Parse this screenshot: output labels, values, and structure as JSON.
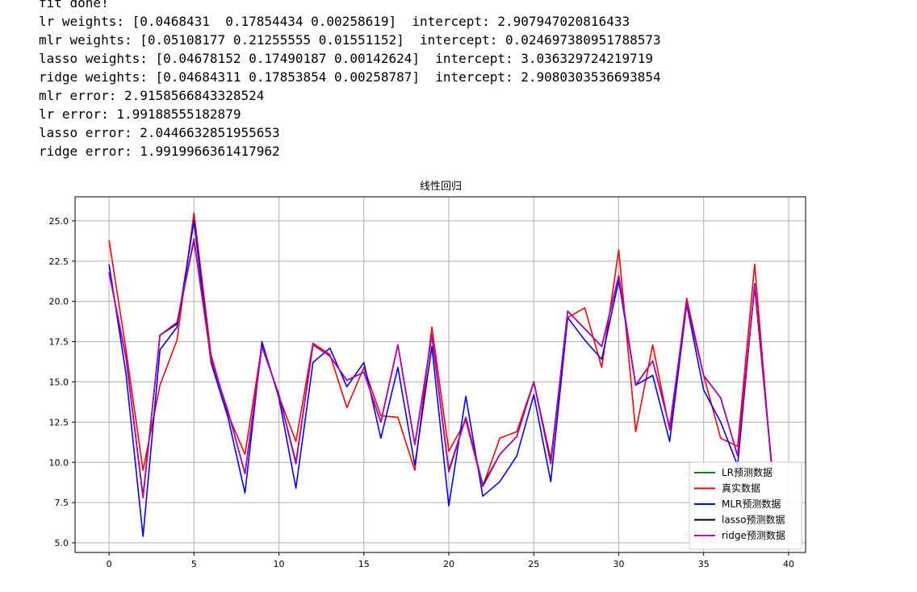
{
  "console": {
    "lines": [
      "fit done!",
      "lr weights: [0.0468431  0.17854434 0.00258619]  intercept: 2.907947020816433",
      "mlr weights: [0.05108177 0.21255555 0.01551152]  intercept: 0.024697380951788573",
      "lasso weights: [0.04678152 0.17490187 0.00142624]  intercept: 3.036329724219719",
      "ridge weights: [0.04684311 0.17853854 0.00258787]  intercept: 2.9080303536693854",
      "mlr error: 2.9158566843328524",
      "lr error: 1.99188555182879",
      "lasso error: 2.0446632851955653",
      "ridge error: 1.9919966361417962"
    ]
  },
  "chart_data": {
    "type": "line",
    "title": "线性回归",
    "xlabel": "",
    "ylabel": "",
    "xlim": [
      -2,
      41
    ],
    "ylim": [
      4.4,
      26.5
    ],
    "xticks": [
      0,
      5,
      10,
      15,
      20,
      25,
      30,
      35,
      40
    ],
    "xtick_labels": [
      "0",
      "5",
      "10",
      "15",
      "20",
      "25",
      "30",
      "35",
      "40"
    ],
    "yticks": [
      5.0,
      7.5,
      10.0,
      12.5,
      15.0,
      17.5,
      20.0,
      22.5,
      25.0
    ],
    "ytick_labels": [
      "5.0",
      "7.5",
      "10.0",
      "12.5",
      "15.0",
      "17.5",
      "20.0",
      "22.5",
      "25.0"
    ],
    "grid": true,
    "legend_position": "lower-right",
    "x": [
      0,
      1,
      2,
      3,
      4,
      5,
      6,
      7,
      8,
      9,
      10,
      11,
      12,
      13,
      14,
      15,
      16,
      17,
      18,
      19,
      20,
      21,
      22,
      23,
      24,
      25,
      26,
      27,
      28,
      29,
      30,
      31,
      32,
      33,
      34,
      35,
      36,
      37,
      38,
      39
    ],
    "series": [
      {
        "name": "LR预测数据",
        "color": "#008000",
        "values": [
          21.8,
          16.5,
          7.8,
          17.9,
          18.7,
          23.9,
          16.4,
          13.2,
          9.3,
          17.2,
          14.2,
          9.9,
          17.3,
          16.6,
          15.1,
          15.6,
          12.5,
          17.3,
          11.1,
          17.9,
          9.4,
          12.8,
          8.5,
          10.5,
          11.6,
          15.0,
          9.9,
          19.4,
          18.3,
          17.2,
          21.6,
          14.8,
          16.3,
          12.2,
          19.9,
          15.4,
          14.0,
          10.4,
          21.0,
          9.8
        ]
      },
      {
        "name": "真实数据",
        "color": "#ff0000",
        "values": [
          23.8,
          17.0,
          9.5,
          14.8,
          17.6,
          25.5,
          16.7,
          13.0,
          10.5,
          17.3,
          14.1,
          11.3,
          17.4,
          16.7,
          13.4,
          15.9,
          12.9,
          12.8,
          9.5,
          18.4,
          10.7,
          12.6,
          8.5,
          11.5,
          11.9,
          15.0,
          10.2,
          19.0,
          19.6,
          15.9,
          23.2,
          11.9,
          17.3,
          12.0,
          20.2,
          15.4,
          11.5,
          11.0,
          22.3,
          9.6
        ]
      },
      {
        "name": "MLR预测数据",
        "color": "#0000ff",
        "values": [
          22.3,
          15.5,
          5.4,
          17.0,
          18.4,
          25.0,
          16.2,
          12.8,
          8.1,
          17.5,
          14.0,
          8.4,
          16.2,
          17.1,
          14.7,
          16.2,
          11.5,
          15.9,
          9.8,
          17.2,
          7.3,
          14.1,
          7.9,
          8.8,
          10.4,
          14.2,
          8.8,
          19.0,
          17.6,
          16.4,
          21.3,
          14.8,
          15.4,
          11.3,
          19.8,
          14.5,
          12.5,
          9.8,
          21.1,
          9.9
        ]
      },
      {
        "name": "lasso预测数据",
        "color": "#000000",
        "values": [
          21.8,
          16.5,
          7.9,
          17.9,
          18.6,
          23.8,
          16.4,
          13.2,
          9.3,
          17.2,
          14.2,
          10.0,
          17.3,
          16.6,
          15.1,
          15.6,
          12.5,
          17.3,
          11.1,
          17.9,
          9.5,
          12.8,
          8.6,
          10.5,
          11.6,
          15.0,
          10.0,
          19.4,
          18.3,
          17.2,
          21.6,
          14.8,
          16.3,
          12.2,
          19.9,
          15.4,
          14.0,
          10.4,
          20.9,
          9.9
        ]
      },
      {
        "name": "ridge预测数据",
        "color": "#bf00bf",
        "values": [
          21.8,
          16.5,
          7.8,
          17.9,
          18.7,
          23.9,
          16.4,
          13.2,
          9.3,
          17.2,
          14.2,
          9.9,
          17.3,
          16.6,
          15.1,
          15.6,
          12.5,
          17.3,
          11.1,
          17.9,
          9.4,
          12.8,
          8.5,
          10.5,
          11.6,
          15.0,
          9.9,
          19.4,
          18.3,
          17.2,
          21.6,
          14.8,
          16.3,
          12.2,
          19.9,
          15.4,
          14.0,
          10.4,
          21.0,
          9.8
        ]
      }
    ]
  }
}
